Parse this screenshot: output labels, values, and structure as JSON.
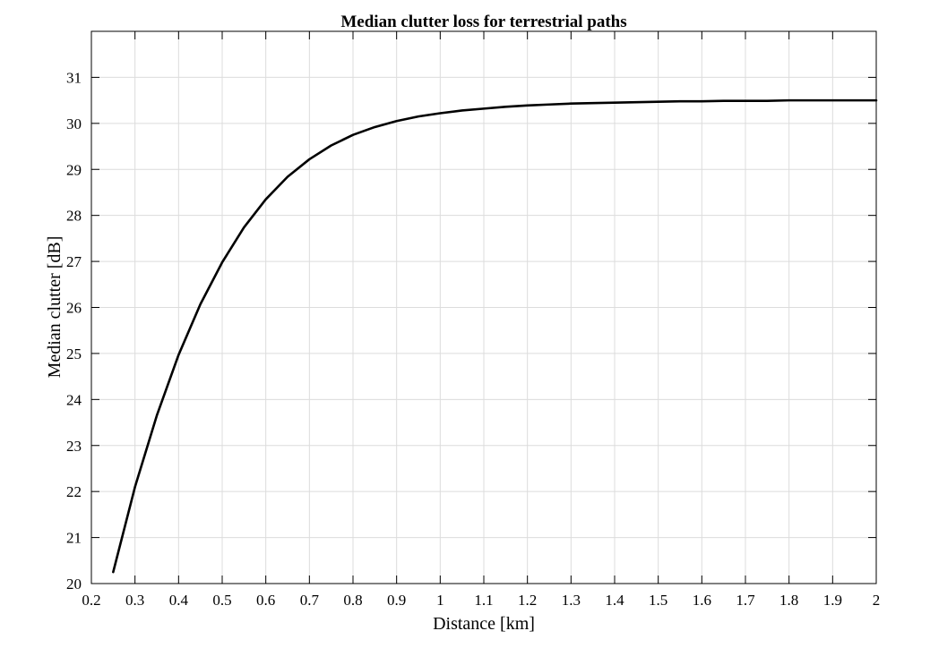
{
  "chart_data": {
    "type": "line",
    "title": "Median clutter loss for terrestrial paths",
    "xlabel": "Distance [km]",
    "ylabel": "Median clutter [dB]",
    "xlim": [
      0.2,
      2
    ],
    "ylim": [
      20,
      32
    ],
    "xticks": [
      "0.2",
      "0.3",
      "0.4",
      "0.5",
      "0.6",
      "0.7",
      "0.8",
      "0.9",
      "1",
      "1.1",
      "1.2",
      "1.3",
      "1.4",
      "1.5",
      "1.6",
      "1.7",
      "1.8",
      "1.9",
      "2"
    ],
    "yticks": [
      "20",
      "21",
      "22",
      "23",
      "24",
      "25",
      "26",
      "27",
      "28",
      "29",
      "30",
      "31"
    ],
    "grid": true,
    "colors": {
      "line": "#000000",
      "grid": "#dcdcdc",
      "axes": "#000000"
    },
    "series": [
      {
        "x": [
          0.25,
          0.3,
          0.35,
          0.4,
          0.45,
          0.5,
          0.55,
          0.6,
          0.65,
          0.7,
          0.75,
          0.8,
          0.85,
          0.9,
          0.95,
          1.0,
          1.05,
          1.1,
          1.15,
          1.2,
          1.25,
          1.3,
          1.35,
          1.4,
          1.45,
          1.5,
          1.55,
          1.6,
          1.65,
          1.7,
          1.75,
          1.8,
          1.85,
          1.9,
          1.95,
          2.0
        ],
        "y": [
          20.25,
          22.1,
          23.65,
          24.97,
          26.07,
          26.98,
          27.74,
          28.35,
          28.84,
          29.22,
          29.52,
          29.75,
          29.92,
          30.05,
          30.15,
          30.22,
          30.28,
          30.32,
          30.36,
          30.39,
          30.41,
          30.43,
          30.44,
          30.45,
          30.46,
          30.47,
          30.48,
          30.48,
          30.49,
          30.49,
          30.49,
          30.5,
          30.5,
          30.5,
          30.5,
          30.5
        ]
      }
    ]
  }
}
